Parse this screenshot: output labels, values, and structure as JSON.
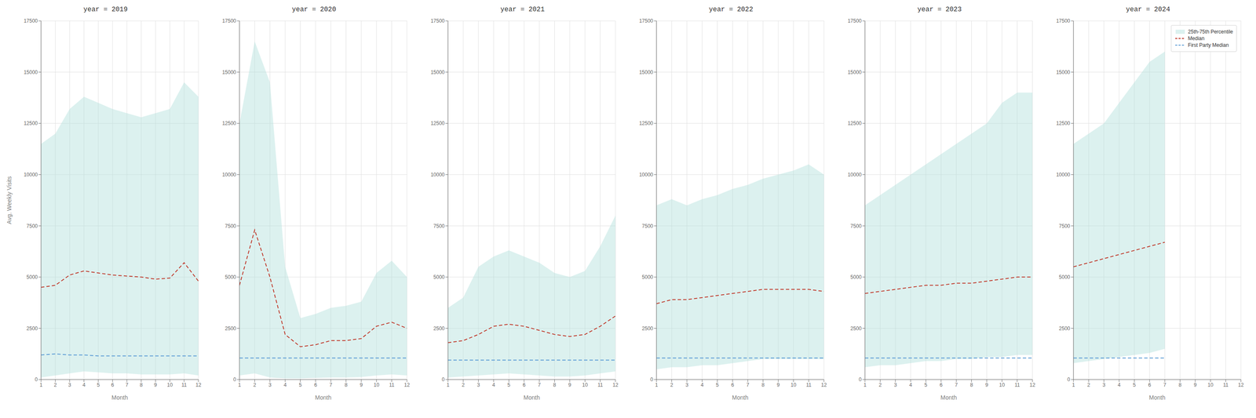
{
  "chart_data": [
    {
      "type": "line",
      "title": "year = 2019",
      "x_label": "Month",
      "y_label": "Avg. Weekly Visits",
      "x": [
        1,
        2,
        3,
        4,
        5,
        6,
        7,
        8,
        9,
        10,
        11,
        12
      ],
      "xlim": [
        1,
        12
      ],
      "xticks": [
        1,
        2,
        3,
        4,
        5,
        6,
        7,
        8,
        9,
        10,
        11,
        12
      ],
      "ylim": [
        0,
        17500
      ],
      "yticks": [
        0,
        2500,
        5000,
        7500,
        10000,
        12500,
        15000,
        17500
      ],
      "grid": true,
      "series": [
        {
          "name": "25th-75th Percentile",
          "type": "area",
          "color": "#b2dfdb",
          "values": [
            [
              100,
              11500
            ],
            [
              200,
              12000
            ],
            [
              300,
              13200
            ],
            [
              400,
              13800
            ],
            [
              350,
              13500
            ],
            [
              300,
              13200
            ],
            [
              300,
              13000
            ],
            [
              250,
              12800
            ],
            [
              250,
              13000
            ],
            [
              250,
              13200
            ],
            [
              300,
              14500
            ],
            [
              200,
              13800
            ]
          ]
        },
        {
          "name": "Median",
          "type": "line",
          "color": "#c0392b",
          "line_style": "dashed",
          "values": [
            4500,
            4600,
            5100,
            5300,
            5200,
            5100,
            5050,
            5000,
            4900,
            4950,
            5700,
            4800
          ]
        },
        {
          "name": "First Party Median",
          "type": "line",
          "color": "#5b9bd5",
          "line_style": "dashed",
          "values": [
            1200,
            1250,
            1200,
            1200,
            1150,
            1150,
            1150,
            1150,
            1150,
            1150,
            1150,
            1150
          ]
        }
      ]
    },
    {
      "type": "line",
      "title": "year = 2020",
      "x_label": "Month",
      "x": [
        1,
        2,
        3,
        4,
        5,
        6,
        7,
        8,
        9,
        10,
        11,
        12
      ],
      "xlim": [
        1,
        12
      ],
      "xticks": [
        1,
        2,
        3,
        4,
        5,
        6,
        7,
        8,
        9,
        10,
        11,
        12
      ],
      "ylim": [
        0,
        17500
      ],
      "yticks": [
        0,
        2500,
        5000,
        7500,
        10000,
        12500,
        15000,
        17500
      ],
      "grid": true,
      "series": [
        {
          "name": "25th-75th Percentile",
          "type": "area",
          "color": "#b2dfdb",
          "values": [
            [
              200,
              12500
            ],
            [
              300,
              16500
            ],
            [
              100,
              14500
            ],
            [
              50,
              5500
            ],
            [
              50,
              3000
            ],
            [
              80,
              3200
            ],
            [
              100,
              3500
            ],
            [
              100,
              3600
            ],
            [
              120,
              3800
            ],
            [
              200,
              5200
            ],
            [
              250,
              5800
            ],
            [
              200,
              5000
            ]
          ]
        },
        {
          "name": "Median",
          "type": "line",
          "color": "#c0392b",
          "line_style": "dashed",
          "values": [
            4600,
            7300,
            5000,
            2200,
            1600,
            1700,
            1900,
            1900,
            2000,
            2600,
            2800,
            2500
          ]
        },
        {
          "name": "First Party Median",
          "type": "line",
          "color": "#5b9bd5",
          "line_style": "dashed",
          "values": [
            1050,
            1050,
            1050,
            1050,
            1050,
            1050,
            1050,
            1050,
            1050,
            1050,
            1050,
            1050
          ]
        }
      ]
    },
    {
      "type": "line",
      "title": "year = 2021",
      "x_label": "Month",
      "x": [
        1,
        2,
        3,
        4,
        5,
        6,
        7,
        8,
        9,
        10,
        11,
        12
      ],
      "xlim": [
        1,
        12
      ],
      "xticks": [
        1,
        2,
        3,
        4,
        5,
        6,
        7,
        8,
        9,
        10,
        11,
        12
      ],
      "ylim": [
        0,
        17500
      ],
      "yticks": [
        0,
        2500,
        5000,
        7500,
        10000,
        12500,
        15000,
        17500
      ],
      "grid": true,
      "series": [
        {
          "name": "25th-75th Percentile",
          "type": "area",
          "color": "#b2dfdb",
          "values": [
            [
              100,
              3500
            ],
            [
              150,
              4000
            ],
            [
              200,
              5500
            ],
            [
              250,
              6000
            ],
            [
              300,
              6300
            ],
            [
              250,
              6000
            ],
            [
              200,
              5700
            ],
            [
              150,
              5200
            ],
            [
              150,
              5000
            ],
            [
              200,
              5300
            ],
            [
              300,
              6500
            ],
            [
              400,
              8000
            ]
          ]
        },
        {
          "name": "Median",
          "type": "line",
          "color": "#c0392b",
          "line_style": "dashed",
          "values": [
            1800,
            1900,
            2200,
            2600,
            2700,
            2600,
            2400,
            2200,
            2100,
            2200,
            2600,
            3100
          ]
        },
        {
          "name": "First Party Median",
          "type": "line",
          "color": "#5b9bd5",
          "line_style": "dashed",
          "values": [
            950,
            950,
            950,
            950,
            950,
            950,
            950,
            950,
            950,
            950,
            950,
            950
          ]
        }
      ]
    },
    {
      "type": "line",
      "title": "year = 2022",
      "x_label": "Month",
      "x": [
        1,
        2,
        3,
        4,
        5,
        6,
        7,
        8,
        9,
        10,
        11,
        12
      ],
      "xlim": [
        1,
        12
      ],
      "xticks": [
        1,
        2,
        3,
        4,
        5,
        6,
        7,
        8,
        9,
        10,
        11,
        12
      ],
      "ylim": [
        0,
        17500
      ],
      "yticks": [
        0,
        2500,
        5000,
        7500,
        10000,
        12500,
        15000,
        17500
      ],
      "grid": true,
      "series": [
        {
          "name": "25th-75th Percentile",
          "type": "area",
          "color": "#b2dfdb",
          "values": [
            [
              500,
              8500
            ],
            [
              600,
              8800
            ],
            [
              600,
              8500
            ],
            [
              700,
              8800
            ],
            [
              700,
              9000
            ],
            [
              800,
              9300
            ],
            [
              900,
              9500
            ],
            [
              1000,
              9800
            ],
            [
              1000,
              10000
            ],
            [
              1000,
              10200
            ],
            [
              1000,
              10500
            ],
            [
              1000,
              10000
            ]
          ]
        },
        {
          "name": "Median",
          "type": "line",
          "color": "#c0392b",
          "line_style": "dashed",
          "values": [
            3700,
            3900,
            3900,
            4000,
            4100,
            4200,
            4300,
            4400,
            4400,
            4400,
            4400,
            4300
          ]
        },
        {
          "name": "First Party Median",
          "type": "line",
          "color": "#5b9bd5",
          "line_style": "dashed",
          "values": [
            1050,
            1050,
            1050,
            1050,
            1050,
            1050,
            1050,
            1050,
            1050,
            1050,
            1050,
            1050
          ]
        }
      ]
    },
    {
      "type": "line",
      "title": "year = 2023",
      "x_label": "Month",
      "x": [
        1,
        2,
        3,
        4,
        5,
        6,
        7,
        8,
        9,
        10,
        11,
        12
      ],
      "xlim": [
        1,
        12
      ],
      "xticks": [
        1,
        2,
        3,
        4,
        5,
        6,
        7,
        8,
        9,
        10,
        11,
        12
      ],
      "ylim": [
        0,
        17500
      ],
      "yticks": [
        0,
        2500,
        5000,
        7500,
        10000,
        12500,
        15000,
        17500
      ],
      "grid": true,
      "series": [
        {
          "name": "25th-75th Percentile",
          "type": "area",
          "color": "#b2dfdb",
          "values": [
            [
              600,
              8500
            ],
            [
              700,
              9000
            ],
            [
              700,
              9500
            ],
            [
              800,
              10000
            ],
            [
              900,
              10500
            ],
            [
              900,
              11000
            ],
            [
              1000,
              11500
            ],
            [
              1000,
              12000
            ],
            [
              1100,
              12500
            ],
            [
              1100,
              13500
            ],
            [
              1200,
              14000
            ],
            [
              1200,
              14000
            ]
          ]
        },
        {
          "name": "Median",
          "type": "line",
          "color": "#c0392b",
          "line_style": "dashed",
          "values": [
            4200,
            4300,
            4400,
            4500,
            4600,
            4600,
            4700,
            4700,
            4800,
            4900,
            5000,
            5000
          ]
        },
        {
          "name": "First Party Median",
          "type": "line",
          "color": "#5b9bd5",
          "line_style": "dashed",
          "values": [
            1050,
            1050,
            1050,
            1050,
            1050,
            1050,
            1050,
            1050,
            1050,
            1050,
            1050,
            1050
          ]
        }
      ]
    },
    {
      "type": "line",
      "title": "year = 2024",
      "x_label": "Month",
      "x": [
        1,
        2,
        3,
        4,
        5,
        6,
        7
      ],
      "xlim": [
        1,
        12
      ],
      "xticks": [
        1,
        2,
        3,
        4,
        5,
        6,
        7,
        8,
        9,
        10,
        11,
        12
      ],
      "ylim": [
        0,
        17500
      ],
      "yticks": [
        0,
        2500,
        5000,
        7500,
        10000,
        12500,
        15000,
        17500
      ],
      "grid": true,
      "legend": "upper right",
      "series": [
        {
          "name": "25th-75th Percentile",
          "type": "area",
          "color": "#b2dfdb",
          "values": [
            [
              800,
              11500
            ],
            [
              900,
              12000
            ],
            [
              1000,
              12500
            ],
            [
              1100,
              13500
            ],
            [
              1200,
              14500
            ],
            [
              1300,
              15500
            ],
            [
              1500,
              16000
            ]
          ]
        },
        {
          "name": "Median",
          "type": "line",
          "color": "#c0392b",
          "line_style": "dashed",
          "values": [
            5500,
            5700,
            5900,
            6100,
            6300,
            6500,
            6700
          ]
        },
        {
          "name": "First Party Median",
          "type": "line",
          "color": "#5b9bd5",
          "line_style": "dashed",
          "values": [
            1050,
            1050,
            1050,
            1050,
            1050,
            1050,
            1050
          ]
        }
      ]
    }
  ]
}
